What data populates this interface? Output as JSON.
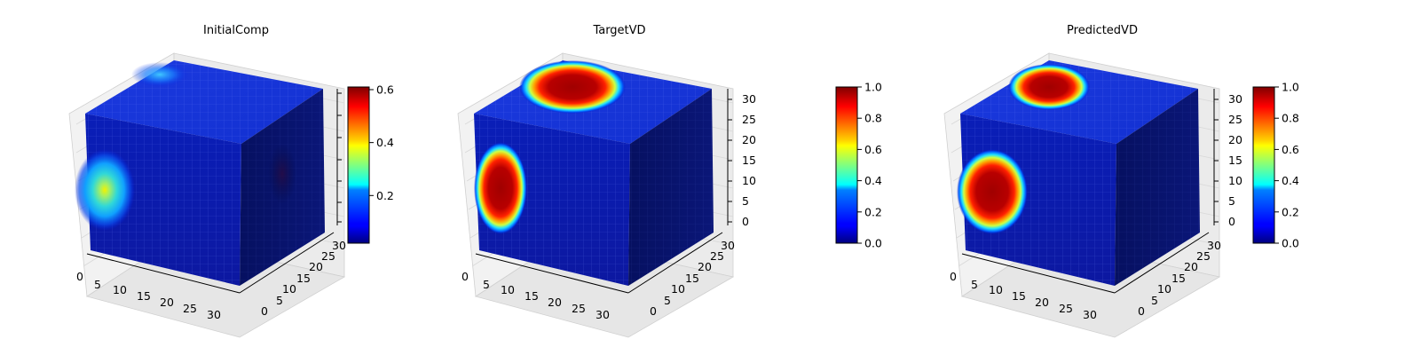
{
  "chart_data": [
    {
      "type": "heatmap",
      "title": "InitialComp",
      "xticks": [
        "0",
        "5",
        "10",
        "15",
        "20",
        "25",
        "30"
      ],
      "yticks": [
        "0",
        "5",
        "10",
        "15",
        "20",
        "25",
        "30"
      ],
      "zticks": [
        "",
        "",
        "",
        "",
        "",
        "",
        ""
      ],
      "xlim": [
        0,
        32
      ],
      "ylim": [
        0,
        32
      ],
      "zlim": [
        0,
        32
      ],
      "colorbar": {
        "min": 0.02,
        "max": 0.61,
        "ticks": [
          0.2,
          0.4,
          0.6
        ],
        "labels": [
          "0.2",
          "0.4",
          "0.6"
        ],
        "colormap": "jet"
      },
      "blobs": [
        {
          "face": "front",
          "value": 0.38
        },
        {
          "face": "top",
          "value": 0.25
        },
        {
          "face": "right",
          "value": 0.05
        }
      ]
    },
    {
      "type": "heatmap",
      "title": "TargetVD",
      "xticks": [
        "0",
        "5",
        "10",
        "15",
        "20",
        "25",
        "30"
      ],
      "yticks": [
        "0",
        "5",
        "10",
        "15",
        "20",
        "25",
        "30"
      ],
      "zticks": [
        "0",
        "5",
        "10",
        "15",
        "20",
        "25",
        "30"
      ],
      "xlim": [
        0,
        32
      ],
      "ylim": [
        0,
        32
      ],
      "zlim": [
        0,
        32
      ],
      "colorbar": {
        "min": 0.0,
        "max": 1.0,
        "ticks": [
          0.0,
          0.2,
          0.4,
          0.6,
          0.8,
          1.0
        ],
        "labels": [
          "0.0",
          "0.2",
          "0.4",
          "0.6",
          "0.8",
          "1.0"
        ],
        "colormap": "jet"
      },
      "blobs": [
        {
          "face": "front",
          "value": 1.0
        },
        {
          "face": "top",
          "value": 1.0
        }
      ]
    },
    {
      "type": "heatmap",
      "title": "PredictedVD",
      "xticks": [
        "0",
        "5",
        "10",
        "15",
        "20",
        "25",
        "30"
      ],
      "yticks": [
        "0",
        "5",
        "10",
        "15",
        "20",
        "25",
        "30"
      ],
      "zticks": [
        "0",
        "5",
        "10",
        "15",
        "20",
        "25",
        "30"
      ],
      "xlim": [
        0,
        32
      ],
      "ylim": [
        0,
        32
      ],
      "zlim": [
        0,
        32
      ],
      "colorbar": {
        "min": 0.0,
        "max": 1.0,
        "ticks": [
          0.0,
          0.2,
          0.4,
          0.6,
          0.8,
          1.0
        ],
        "labels": [
          "0.0",
          "0.2",
          "0.4",
          "0.6",
          "0.8",
          "1.0"
        ],
        "colormap": "jet"
      },
      "blobs": [
        {
          "face": "front",
          "value": 1.0
        },
        {
          "face": "top",
          "value": 1.0
        }
      ]
    }
  ]
}
